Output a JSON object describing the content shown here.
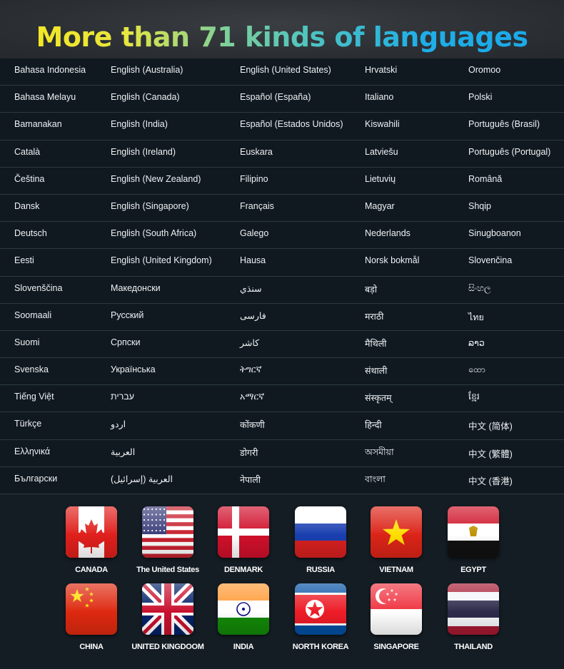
{
  "header": {
    "title_words": [
      "More",
      "than",
      "71",
      "kinds",
      "of",
      "languages"
    ]
  },
  "languages": [
    [
      "Bahasa Indonesia",
      "English (Australia)",
      "English (United States)",
      "Hrvatski",
      "Oromoo"
    ],
    [
      "Bahasa Melayu",
      "English (Canada)",
      "Español (España)",
      "Italiano",
      "Polski"
    ],
    [
      "Bamanakan",
      "English (India)",
      "Español (Estados Unidos)",
      "Kiswahili",
      "Português (Brasil)"
    ],
    [
      "Català",
      "English (Ireland)",
      "Euskara",
      "Latviešu",
      "Português (Portugal)"
    ],
    [
      "Čeština",
      "English (New Zealand)",
      "Filipino",
      "Lietuvių",
      "Română"
    ],
    [
      "Dansk",
      "English (Singapore)",
      "Français",
      "Magyar",
      "Shqip"
    ],
    [
      "Deutsch",
      "English (South Africa)",
      "Galego",
      "Nederlands",
      "Sinugboanon"
    ],
    [
      "Eesti",
      "English (United Kingdom)",
      "Hausa",
      "Norsk bokmål",
      "Slovenčina"
    ],
    [
      "Slovenščina",
      "Македонски",
      "سنڌي",
      "बड़ो",
      "සිංහල"
    ],
    [
      "Soomaali",
      "Русский",
      "فارسی",
      "मराठी",
      "ไทย"
    ],
    [
      "Suomi",
      "Српски",
      "کاشر",
      "मैथिली",
      "ລາວ"
    ],
    [
      "Svenska",
      "Українська",
      "ትግርኛ",
      "संथाली",
      "ထော"
    ],
    [
      "Tiếng Việt",
      "עברית",
      "አማርኛ",
      "संस्कृतम्",
      "ខ្មែរ"
    ],
    [
      "Türkçe",
      "اردو",
      "कोंकणी",
      "हिन्दी",
      "中文 (简体)"
    ],
    [
      "Ελληνικά",
      "العربية",
      "डोगरी",
      "অসমীয়া",
      "中文 (繁體)"
    ],
    [
      "Български",
      "العربية (إسرائيل)",
      "नेपाली",
      "বাংলা",
      "中文 (香港)"
    ]
  ],
  "flags": [
    {
      "label": "CANADA",
      "icon": "flag-canada"
    },
    {
      "label": "The United States",
      "icon": "flag-united-states"
    },
    {
      "label": "DENMARK",
      "icon": "flag-denmark"
    },
    {
      "label": "RUSSIA",
      "icon": "flag-russia"
    },
    {
      "label": "VIETNAM",
      "icon": "flag-vietnam"
    },
    {
      "label": "EGYPT",
      "icon": "flag-egypt"
    },
    {
      "label": "CHINA",
      "icon": "flag-china"
    },
    {
      "label": "UNITED KINGDOOM",
      "icon": "flag-united-kingdom"
    },
    {
      "label": "INDIA",
      "icon": "flag-india"
    },
    {
      "label": "NORTH KOREA",
      "icon": "flag-north-korea"
    },
    {
      "label": "SINGAPORE",
      "icon": "flag-singapore"
    },
    {
      "label": "THAILAND",
      "icon": "flag-thailand"
    }
  ],
  "colors": {
    "title_start": "#f6e81a",
    "title_mid": "#4fc3c0",
    "title_end": "#1aa8ea",
    "table_bg": "#101920",
    "text": "#eef2f4"
  }
}
